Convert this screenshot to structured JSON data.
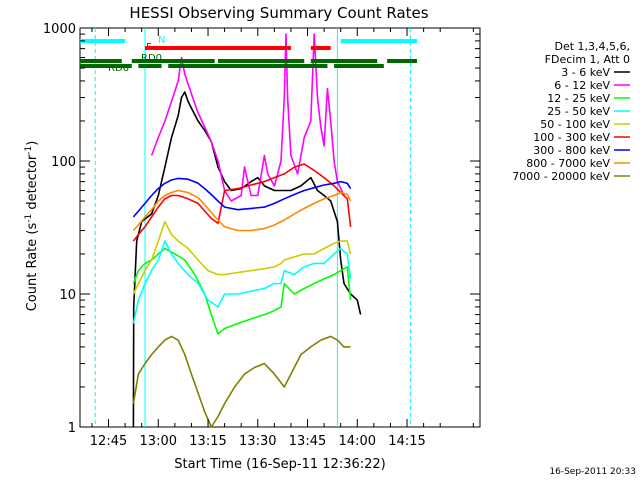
{
  "chart_data": {
    "type": "line",
    "title": "HESSI Observing Summary Count Rates",
    "xlabel": "Start Time (16-Sep-11 12:36:22)",
    "ylabel_parts": [
      "Count Rate (s",
      "-1",
      " detector",
      "-1",
      ")"
    ],
    "yscale": "log",
    "ylim": [
      1,
      1000
    ],
    "xlim_minutes": [
      36.4,
      157
    ],
    "x_ticks": [
      {
        "m": 45,
        "label": "12:45"
      },
      {
        "m": 60,
        "label": "13:00"
      },
      {
        "m": 75,
        "label": "13:15"
      },
      {
        "m": 90,
        "label": "13:30"
      },
      {
        "m": 105,
        "label": "13:45"
      },
      {
        "m": 120,
        "label": "14:00"
      },
      {
        "m": 135,
        "label": "14:15"
      }
    ],
    "y_ticks": [
      {
        "v": 1,
        "label": "1"
      },
      {
        "v": 10,
        "label": "10"
      },
      {
        "v": 100,
        "label": "100"
      },
      {
        "v": 1000,
        "label": "1000"
      }
    ],
    "legend_header": [
      "Det 1,3,4,5,6,",
      "FDecim 1, Att 0"
    ],
    "legend_position": "right",
    "series": [
      {
        "name": "3 - 6 keV",
        "color": "#000000",
        "points": [
          [
            52.5,
            1
          ],
          [
            52.6,
            8
          ],
          [
            53.5,
            25
          ],
          [
            55,
            35
          ],
          [
            58,
            40
          ],
          [
            60,
            55
          ],
          [
            62,
            90
          ],
          [
            64,
            150
          ],
          [
            66,
            220
          ],
          [
            67,
            300
          ],
          [
            68,
            330
          ],
          [
            69,
            280
          ],
          [
            70,
            250
          ],
          [
            72,
            200
          ],
          [
            74,
            170
          ],
          [
            76,
            140
          ],
          [
            78,
            90
          ],
          [
            80,
            70
          ],
          [
            82,
            60
          ],
          [
            85,
            62
          ],
          [
            88,
            70
          ],
          [
            90,
            75
          ],
          [
            92,
            65
          ],
          [
            95,
            60
          ],
          [
            100,
            60
          ],
          [
            103,
            65
          ],
          [
            106,
            75
          ],
          [
            108,
            60
          ],
          [
            110,
            55
          ],
          [
            112,
            50
          ],
          [
            114,
            35
          ],
          [
            115,
            18
          ],
          [
            116,
            12
          ],
          [
            118,
            10
          ],
          [
            120,
            9
          ],
          [
            121,
            7
          ]
        ]
      },
      {
        "name": "6 - 12 keV",
        "color": "#ff00ff",
        "points": [
          [
            58,
            110
          ],
          [
            60,
            150
          ],
          [
            62,
            200
          ],
          [
            64,
            280
          ],
          [
            66,
            400
          ],
          [
            67,
            600
          ],
          [
            68,
            450
          ],
          [
            70,
            320
          ],
          [
            72,
            230
          ],
          [
            74,
            180
          ],
          [
            76,
            140
          ],
          [
            78,
            100
          ],
          [
            80,
            60
          ],
          [
            82,
            50
          ],
          [
            85,
            55
          ],
          [
            86,
            90
          ],
          [
            87,
            70
          ],
          [
            88,
            55
          ],
          [
            90,
            55
          ],
          [
            92,
            110
          ],
          [
            93,
            80
          ],
          [
            95,
            65
          ],
          [
            97,
            100
          ],
          [
            98,
            300
          ],
          [
            98.5,
            900
          ],
          [
            99,
            300
          ],
          [
            100,
            110
          ],
          [
            102,
            80
          ],
          [
            104,
            150
          ],
          [
            106,
            200
          ],
          [
            107,
            900
          ],
          [
            108,
            300
          ],
          [
            109,
            180
          ],
          [
            110,
            130
          ],
          [
            111,
            350
          ],
          [
            112,
            200
          ],
          [
            113,
            100
          ],
          [
            114,
            70
          ],
          [
            116,
            55
          ]
        ]
      },
      {
        "name": "12 - 25 keV",
        "color": "#00ff00",
        "points": [
          [
            52.5,
            12
          ],
          [
            54,
            15
          ],
          [
            56,
            17
          ],
          [
            58,
            18
          ],
          [
            60,
            20
          ],
          [
            62,
            22
          ],
          [
            65,
            20
          ],
          [
            68,
            18
          ],
          [
            71,
            14
          ],
          [
            74,
            10
          ],
          [
            76,
            7
          ],
          [
            78,
            5
          ],
          [
            80,
            5.5
          ],
          [
            84,
            6
          ],
          [
            88,
            6.5
          ],
          [
            92,
            7
          ],
          [
            95,
            7.5
          ],
          [
            97,
            8
          ],
          [
            98,
            12
          ],
          [
            101,
            10
          ],
          [
            104,
            11
          ],
          [
            107,
            12
          ],
          [
            110,
            13
          ],
          [
            113,
            14
          ],
          [
            115,
            15
          ],
          [
            117,
            16
          ],
          [
            118,
            9
          ]
        ]
      },
      {
        "name": "25 - 50 keV",
        "color": "#00ffff",
        "points": [
          [
            52.5,
            6
          ],
          [
            54,
            9
          ],
          [
            56,
            12
          ],
          [
            58,
            15
          ],
          [
            60,
            18
          ],
          [
            62,
            25
          ],
          [
            64,
            20
          ],
          [
            66,
            17
          ],
          [
            69,
            14
          ],
          [
            72,
            12
          ],
          [
            75,
            9
          ],
          [
            78,
            8
          ],
          [
            80,
            10
          ],
          [
            84,
            10
          ],
          [
            88,
            10.5
          ],
          [
            92,
            11
          ],
          [
            95,
            12
          ],
          [
            97,
            12
          ],
          [
            98,
            15
          ],
          [
            101,
            14
          ],
          [
            104,
            16
          ],
          [
            107,
            17
          ],
          [
            110,
            17
          ],
          [
            113,
            20
          ],
          [
            115,
            22
          ],
          [
            117,
            20
          ],
          [
            118,
            13
          ]
        ]
      },
      {
        "name": "50 - 100 keV",
        "color": "#cccc00",
        "points": [
          [
            52.5,
            10
          ],
          [
            54,
            12
          ],
          [
            56,
            15
          ],
          [
            58,
            18
          ],
          [
            60,
            25
          ],
          [
            62,
            35
          ],
          [
            64,
            28
          ],
          [
            66,
            25
          ],
          [
            69,
            22
          ],
          [
            72,
            18
          ],
          [
            75,
            15
          ],
          [
            78,
            14
          ],
          [
            80,
            14
          ],
          [
            84,
            14.5
          ],
          [
            88,
            15
          ],
          [
            92,
            15.5
          ],
          [
            95,
            16
          ],
          [
            97,
            17
          ],
          [
            98,
            18
          ],
          [
            101,
            19
          ],
          [
            104,
            20
          ],
          [
            107,
            20
          ],
          [
            110,
            22
          ],
          [
            113,
            24
          ],
          [
            115,
            25
          ],
          [
            117,
            25
          ],
          [
            118,
            20
          ]
        ]
      },
      {
        "name": "100 - 300 keV",
        "color": "#ff0000",
        "points": [
          [
            52.5,
            25
          ],
          [
            54,
            28
          ],
          [
            56,
            32
          ],
          [
            58,
            38
          ],
          [
            60,
            45
          ],
          [
            62,
            52
          ],
          [
            64,
            55
          ],
          [
            66,
            55
          ],
          [
            69,
            52
          ],
          [
            72,
            48
          ],
          [
            74,
            42
          ],
          [
            76,
            37
          ],
          [
            78,
            34
          ],
          [
            80,
            60
          ],
          [
            84,
            62
          ],
          [
            88,
            66
          ],
          [
            92,
            70
          ],
          [
            95,
            75
          ],
          [
            98,
            80
          ],
          [
            101,
            90
          ],
          [
            104,
            95
          ],
          [
            107,
            85
          ],
          [
            110,
            75
          ],
          [
            113,
            65
          ],
          [
            115,
            58
          ],
          [
            117,
            52
          ],
          [
            118,
            32
          ]
        ]
      },
      {
        "name": "300 - 800 keV",
        "color": "#0000ff",
        "points": [
          [
            52.5,
            38
          ],
          [
            54,
            42
          ],
          [
            56,
            48
          ],
          [
            58,
            55
          ],
          [
            60,
            62
          ],
          [
            62,
            68
          ],
          [
            64,
            72
          ],
          [
            66,
            74
          ],
          [
            69,
            73
          ],
          [
            72,
            68
          ],
          [
            74,
            62
          ],
          [
            76,
            56
          ],
          [
            78,
            50
          ],
          [
            80,
            45
          ],
          [
            84,
            43
          ],
          [
            88,
            44
          ],
          [
            92,
            45
          ],
          [
            95,
            48
          ],
          [
            98,
            52
          ],
          [
            101,
            56
          ],
          [
            104,
            60
          ],
          [
            107,
            63
          ],
          [
            110,
            66
          ],
          [
            113,
            68
          ],
          [
            115,
            70
          ],
          [
            117,
            68
          ],
          [
            118,
            62
          ]
        ]
      },
      {
        "name": "800 - 7000 keV",
        "color": "#ff8800",
        "points": [
          [
            52.5,
            30
          ],
          [
            54,
            33
          ],
          [
            56,
            38
          ],
          [
            58,
            43
          ],
          [
            60,
            50
          ],
          [
            62,
            55
          ],
          [
            64,
            58
          ],
          [
            66,
            60
          ],
          [
            69,
            58
          ],
          [
            72,
            53
          ],
          [
            74,
            47
          ],
          [
            76,
            41
          ],
          [
            78,
            36
          ],
          [
            80,
            32
          ],
          [
            84,
            30
          ],
          [
            88,
            30
          ],
          [
            92,
            31
          ],
          [
            95,
            33
          ],
          [
            98,
            36
          ],
          [
            101,
            40
          ],
          [
            104,
            44
          ],
          [
            107,
            48
          ],
          [
            110,
            52
          ],
          [
            113,
            55
          ],
          [
            115,
            58
          ],
          [
            117,
            56
          ],
          [
            118,
            50
          ]
        ]
      },
      {
        "name": "7000 - 20000 keV",
        "color": "#808000",
        "points": [
          [
            52.5,
            1.5
          ],
          [
            54,
            2.5
          ],
          [
            56,
            3
          ],
          [
            58,
            3.5
          ],
          [
            60,
            4
          ],
          [
            62,
            4.5
          ],
          [
            64,
            4.8
          ],
          [
            66,
            4.5
          ],
          [
            68,
            3.5
          ],
          [
            70,
            2.5
          ],
          [
            72,
            1.8
          ],
          [
            74,
            1.3
          ],
          [
            76,
            1
          ],
          [
            78,
            1.2
          ],
          [
            80,
            1.5
          ],
          [
            83,
            2
          ],
          [
            86,
            2.5
          ],
          [
            89,
            2.8
          ],
          [
            92,
            3
          ],
          [
            95,
            2.5
          ],
          [
            98,
            2
          ],
          [
            100,
            2.5
          ],
          [
            103,
            3.5
          ],
          [
            106,
            4
          ],
          [
            109,
            4.5
          ],
          [
            112,
            4.8
          ],
          [
            114,
            4.5
          ],
          [
            116,
            4
          ],
          [
            118,
            4
          ]
        ]
      }
    ],
    "flags": [
      {
        "label": "N",
        "color": "#00ffff",
        "segments": [
          [
            36.4,
            50
          ],
          [
            115,
            138
          ]
        ]
      },
      {
        "label": "F",
        "color": "#ff0000",
        "segments": [
          [
            56,
            100
          ],
          [
            106,
            112
          ]
        ]
      },
      {
        "label": "RD0",
        "color": "#006600",
        "segments": [
          [
            36.4,
            49
          ],
          [
            52,
            77
          ],
          [
            78,
            104
          ],
          [
            106,
            126
          ],
          [
            129,
            138
          ]
        ]
      },
      {
        "label": "RD6",
        "color": "#006600",
        "segments": [
          [
            36.4,
            52
          ],
          [
            54,
            61
          ],
          [
            63,
            111
          ],
          [
            113,
            128
          ]
        ]
      }
    ],
    "saa_times": [
      41,
      56,
      114,
      136
    ],
    "footer": "16-Sep-2011 20:33"
  }
}
